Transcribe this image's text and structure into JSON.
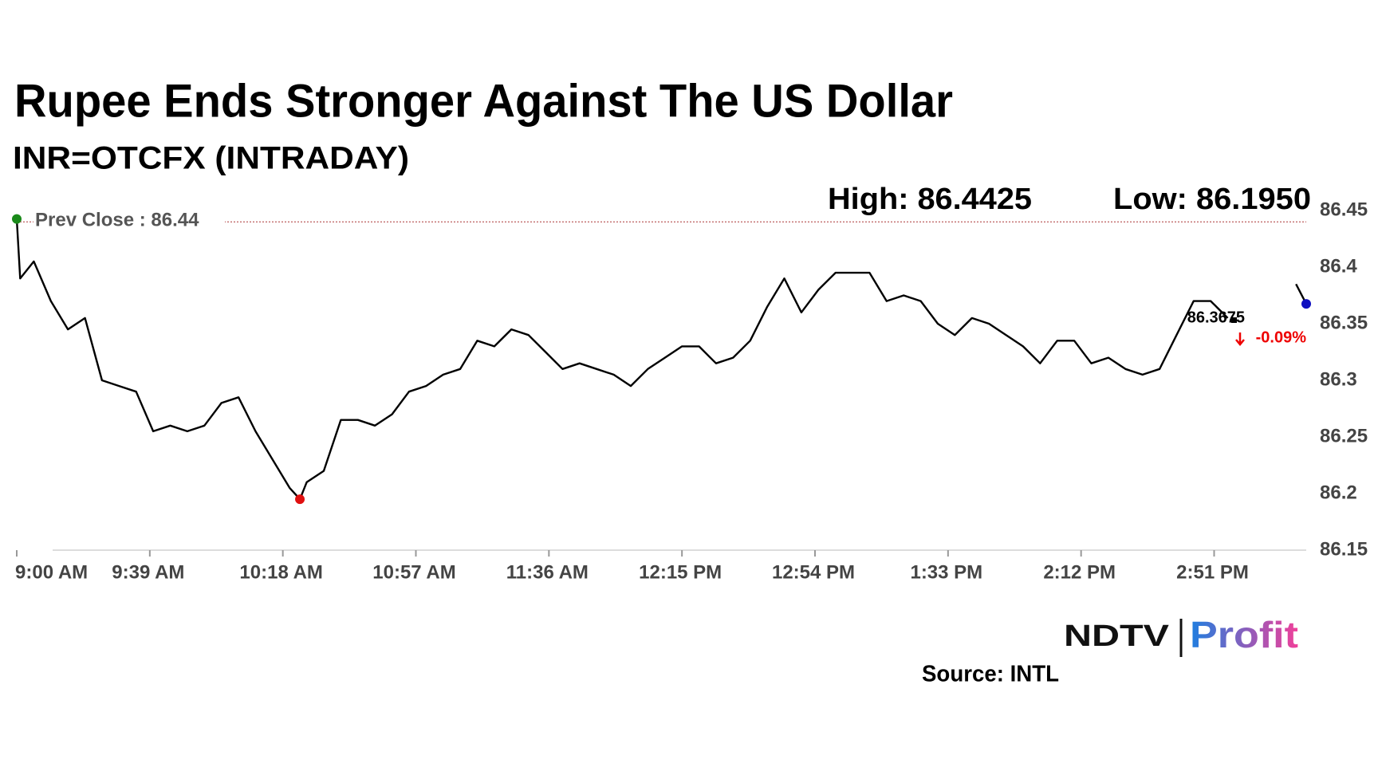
{
  "chart_data": {
    "type": "line",
    "title": "Rupee Ends Stronger Against The US Dollar",
    "subtitle": "INR=OTCFX (INTRADAY)",
    "high_label": "High: 86.4425",
    "low_label": "Low: 86.1950",
    "prev_close": 86.44,
    "prev_close_label": "Prev Close : 86.44",
    "last_label": "86.3675",
    "change_label": "-0.09%",
    "source": "Source: INTL",
    "logo": {
      "left": "NDTV",
      "right": "Profit"
    },
    "xlim": [
      540,
      918
    ],
    "ylim": [
      86.15,
      86.45
    ],
    "xticks": [
      {
        "value": 540,
        "label": "9:00 AM"
      },
      {
        "value": 579,
        "label": "9:39 AM"
      },
      {
        "value": 618,
        "label": "10:18 AM"
      },
      {
        "value": 657,
        "label": "10:57 AM"
      },
      {
        "value": 696,
        "label": "11:36 AM"
      },
      {
        "value": 735,
        "label": "12:15 PM"
      },
      {
        "value": 774,
        "label": "12:54 PM"
      },
      {
        "value": 813,
        "label": "1:33 PM"
      },
      {
        "value": 852,
        "label": "2:12 PM"
      },
      {
        "value": 891,
        "label": "2:51 PM"
      }
    ],
    "yticks": [
      86.15,
      86.2,
      86.25,
      86.3,
      86.35,
      86.4,
      86.45
    ],
    "x": [
      540,
      541,
      545,
      550,
      555,
      560,
      565,
      570,
      575,
      580,
      585,
      590,
      595,
      600,
      605,
      610,
      615,
      620,
      623,
      625,
      630,
      635,
      640,
      645,
      650,
      655,
      660,
      665,
      670,
      675,
      680,
      685,
      690,
      695,
      700,
      705,
      710,
      715,
      720,
      725,
      730,
      735,
      740,
      745,
      750,
      755,
      760,
      765,
      770,
      775,
      780,
      785,
      790,
      795,
      800,
      805,
      810,
      815,
      820,
      825,
      830,
      835,
      840,
      845,
      850,
      855,
      860,
      865,
      870,
      875,
      880,
      885,
      890,
      895,
      900,
      905,
      910,
      915,
      918
    ],
    "series": [
      {
        "name": "INR=OTCFX",
        "color": "#000000",
        "values": [
          86.4425,
          86.39,
          86.405,
          86.37,
          86.345,
          86.355,
          86.3,
          86.295,
          86.29,
          86.255,
          86.26,
          86.255,
          86.26,
          86.28,
          86.285,
          86.255,
          86.23,
          86.205,
          86.195,
          86.21,
          86.22,
          86.265,
          86.265,
          86.26,
          86.27,
          86.29,
          86.295,
          86.305,
          86.31,
          86.335,
          86.33,
          86.345,
          86.34,
          86.325,
          86.31,
          86.315,
          86.31,
          86.305,
          86.295,
          86.31,
          86.32,
          86.33,
          86.33,
          86.315,
          86.32,
          86.335,
          86.365,
          86.39,
          86.36,
          86.38,
          86.395,
          86.395,
          86.395,
          86.37,
          86.375,
          86.37,
          86.35,
          86.34,
          86.355,
          86.35,
          86.34,
          86.33,
          86.315,
          86.335,
          86.335,
          86.315,
          86.32,
          86.31,
          86.305,
          86.31,
          86.34,
          86.37,
          86.37,
          86.355,
          null,
          null,
          null,
          86.385,
          86.3675
        ]
      }
    ]
  }
}
